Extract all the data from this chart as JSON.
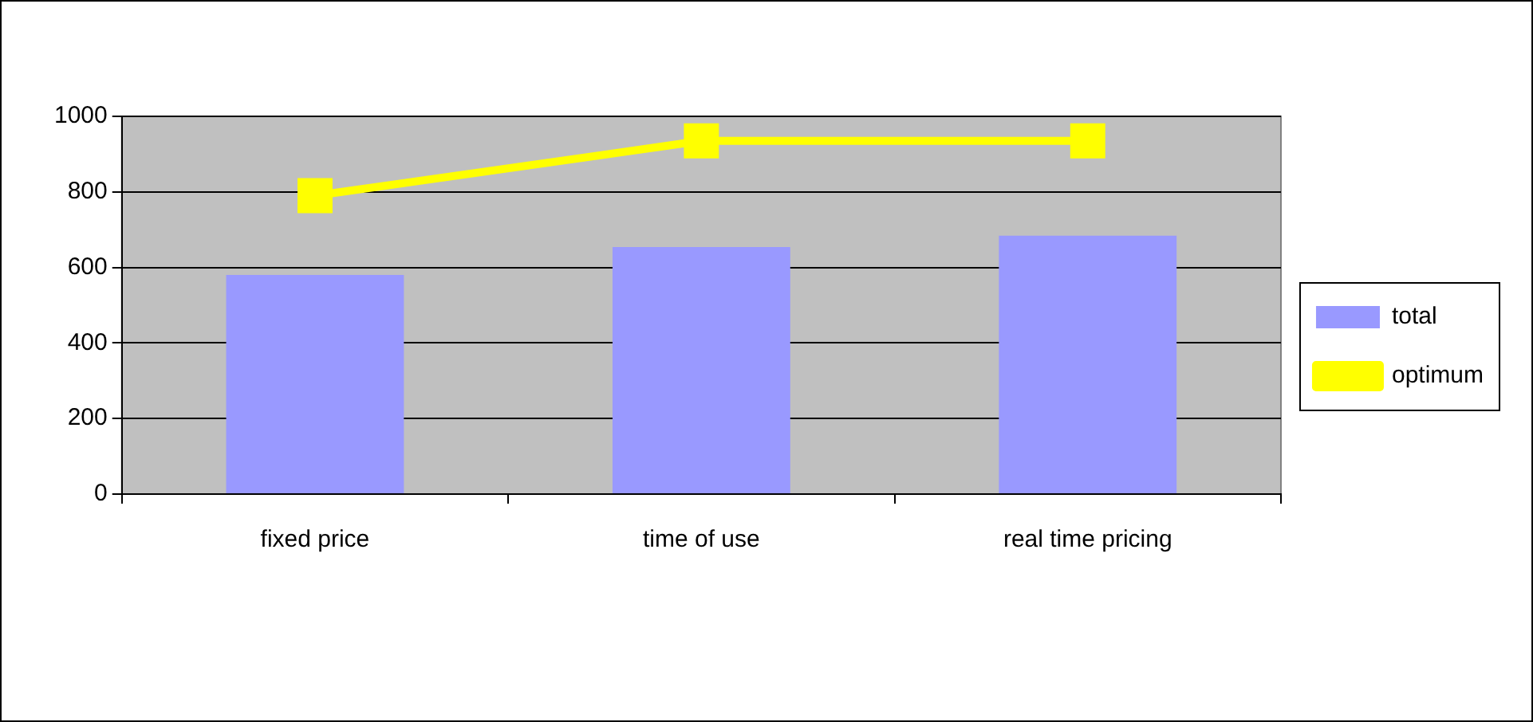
{
  "chart_data": {
    "type": "bar",
    "categories": [
      "fixed price",
      "time of use",
      "real time pricing"
    ],
    "series": [
      {
        "name": "total",
        "color": "#9999ff",
        "values": [
          580,
          654,
          684
        ]
      },
      {
        "name": "optimum",
        "type": "line",
        "color": "#ffff00",
        "values": [
          790,
          935,
          935
        ],
        "marker": "square"
      }
    ],
    "ylim": [
      0,
      1000
    ],
    "yticks": [
      0,
      200,
      400,
      600,
      800,
      1000
    ],
    "grid": "y",
    "legend": "right"
  }
}
